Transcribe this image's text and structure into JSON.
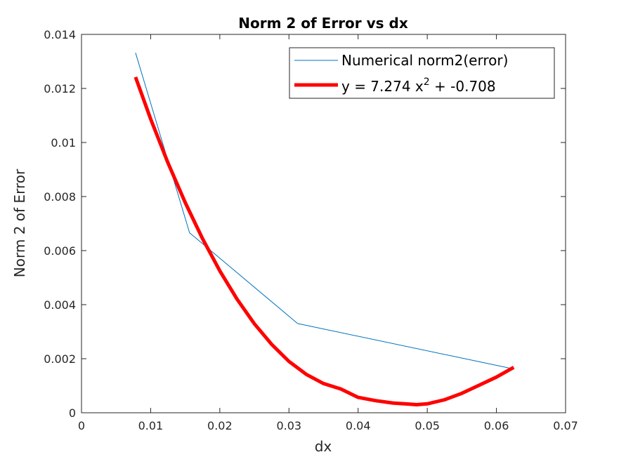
{
  "chart_data": {
    "type": "line",
    "title": "Norm 2 of Error vs dx",
    "xlabel": "dx",
    "ylabel": "Norm 2 of Error",
    "xlim": [
      0,
      0.07
    ],
    "ylim": [
      0,
      0.014
    ],
    "xticks": [
      0,
      0.01,
      0.02,
      0.03,
      0.04,
      0.05,
      0.06,
      0.07
    ],
    "xtick_labels": [
      "0",
      "0.01",
      "0.02",
      "0.03",
      "0.04",
      "0.05",
      "0.06",
      "0.07"
    ],
    "yticks": [
      0,
      0.002,
      0.004,
      0.006,
      0.008,
      0.01,
      0.012,
      0.014
    ],
    "ytick_labels": [
      "0",
      "0.002",
      "0.004",
      "0.006",
      "0.008",
      "0.01",
      "0.012",
      "0.014"
    ],
    "grid": false,
    "legend_position": "top-right",
    "series": [
      {
        "name": "Numerical norm2(error)",
        "color": "#0072BD",
        "style": "thin-line",
        "x": [
          0.0078125,
          0.015625,
          0.03125,
          0.0625
        ],
        "y": [
          0.01332,
          0.00666,
          0.0033,
          0.00162
        ]
      },
      {
        "name_prefix": "y = 7.274 x",
        "name_superscript": "2",
        "name_suffix": " + -0.708",
        "color": "#FF0000",
        "style": "thick-line",
        "x": [
          0.0078125,
          0.01,
          0.0125,
          0.015,
          0.0175,
          0.02,
          0.0225,
          0.025,
          0.0275,
          0.03,
          0.0325,
          0.035,
          0.0375,
          0.04,
          0.0425,
          0.045,
          0.0475,
          0.04844,
          0.05,
          0.0525,
          0.055,
          0.0575,
          0.06,
          0.0625
        ],
        "y": [
          0.01242,
          0.01087,
          0.00925,
          0.00778,
          0.00644,
          0.00525,
          0.0042,
          0.00329,
          0.00253,
          0.0019,
          0.00142,
          0.00108,
          0.00088,
          0.00057,
          0.00045,
          0.00036,
          0.00032,
          0.0003,
          0.00033,
          0.00048,
          0.00072,
          0.00102,
          0.00132,
          0.00168
        ]
      }
    ]
  }
}
